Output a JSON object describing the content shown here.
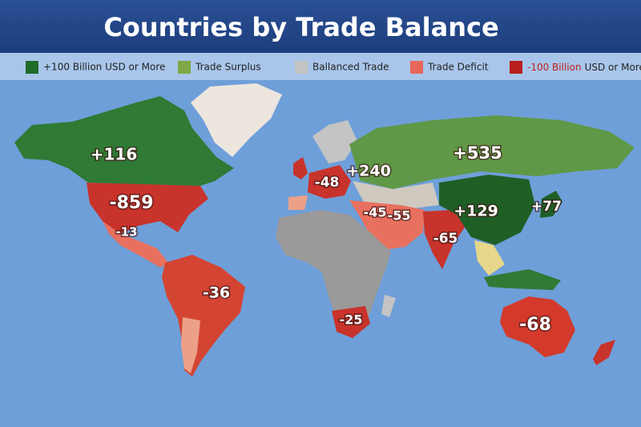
{
  "header": {
    "title": "Countries by Trade Balance"
  },
  "legend": {
    "items": [
      {
        "label": "+100 Billion USD or More",
        "color": "#1e6b2a"
      },
      {
        "label": "Trade Surplus",
        "color": "#7fa844"
      },
      {
        "label": "Ballanced Trade",
        "color": "#c4c4c4"
      },
      {
        "label": "Trade Deficit",
        "color": "#e8665a"
      },
      {
        "label_emphasis": "-100 Billion",
        "label": "USD or More",
        "color": "#b8201e"
      }
    ]
  },
  "map": {
    "labels": [
      "+116",
      "-859",
      "-13",
      "-36",
      "-48",
      "+240",
      "+535",
      "+129",
      "+77",
      "-45",
      "-55",
      "-65",
      "-25",
      "-68"
    ]
  }
}
